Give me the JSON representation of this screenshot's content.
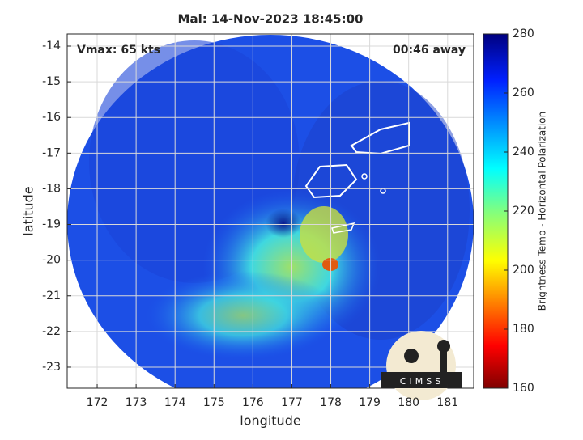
{
  "chart_data": {
    "type": "image",
    "title": "Mal: 14-Nov-2023 18:45:00",
    "xlabel": "longitude",
    "ylabel": "latitude",
    "annotations": [
      "Vmax: 65 kts",
      "00:46 away"
    ],
    "xlim": [
      171.23,
      181.67
    ],
    "xticks": [
      172,
      173,
      174,
      175,
      176,
      177,
      178,
      179,
      180,
      181
    ],
    "ylim": [
      -23.59,
      -13.66
    ],
    "yticks": [
      -14,
      -15,
      -16,
      -17,
      -18,
      -19,
      -20,
      -21,
      -22,
      -23
    ],
    "grid": true,
    "colorbar": {
      "label": "Brightness Temp - Horizontal Polarization",
      "lim": [
        160,
        280
      ],
      "ticks": [
        160,
        180,
        200,
        220,
        240,
        260,
        280
      ]
    },
    "logo": "CIMSS"
  }
}
